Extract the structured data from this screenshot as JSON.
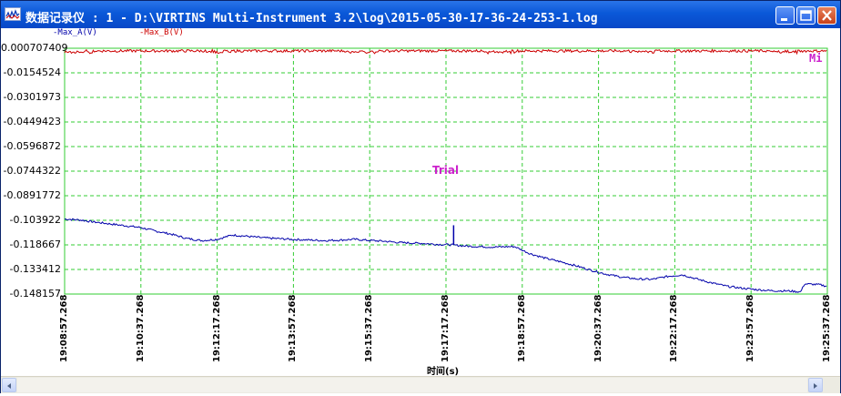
{
  "window": {
    "title": "数据记录仪 : 1 - D:\\VIRTINS Multi-Instrument 3.2\\log\\2015-05-30-17-36-24-253-1.log",
    "controls": {
      "minimize": "minimize",
      "maximize": "maximize",
      "close": "close"
    }
  },
  "legend": {
    "a": {
      "label": "-Max_A(V)",
      "color": "#0000aa"
    },
    "b": {
      "label": "-Max_B(V)",
      "color": "#cc0000"
    }
  },
  "chart": {
    "grid_color": "#33cc33",
    "watermark": "Trial",
    "corner_tag": "Mi",
    "xaxis_title": "时间(s)"
  },
  "chart_data": {
    "type": "line",
    "xlabel": "时间(s)",
    "ylabel": "",
    "y_ticks": [
      "0.000707409",
      "-0.0154524",
      "-0.0301973",
      "-0.0449423",
      "-0.0596872",
      "-0.0744322",
      "-0.0891772",
      "-0.103922",
      "-0.118667",
      "-0.133412",
      "-0.148157"
    ],
    "x_ticks": [
      "19:08:57.268",
      "19:10:37.268",
      "19:12:17.268",
      "19:13:57.268",
      "19:15:37.268",
      "19:17:17.268",
      "19:18:57.268",
      "19:20:37.268",
      "19:22:17.268",
      "19:23:57.268",
      "19:25:37.268"
    ],
    "ylim": [
      -0.148157,
      0.000707409
    ],
    "xlim_s": [
      0,
      1000
    ],
    "grid": true,
    "series": [
      {
        "name": "Max_A(V)",
        "color": "#0000aa",
        "x_s": [
          0,
          20,
          40,
          60,
          80,
          100,
          120,
          140,
          160,
          180,
          200,
          220,
          240,
          260,
          280,
          300,
          320,
          340,
          360,
          380,
          400,
          420,
          440,
          470,
          490,
          505,
          510,
          530,
          560,
          590,
          610,
          630,
          650,
          670,
          690,
          710,
          730,
          750,
          770,
          790,
          810,
          830,
          850,
          870,
          890,
          910,
          930,
          950,
          965,
          970,
          990,
          1000
        ],
        "values": [
          -0.1027,
          -0.1033,
          -0.1046,
          -0.1057,
          -0.1068,
          -0.1079,
          -0.1101,
          -0.1119,
          -0.1145,
          -0.1158,
          -0.115,
          -0.1124,
          -0.1132,
          -0.1141,
          -0.1146,
          -0.1151,
          -0.1154,
          -0.1158,
          -0.1155,
          -0.115,
          -0.1157,
          -0.1162,
          -0.117,
          -0.1175,
          -0.1181,
          -0.1183,
          -0.1185,
          -0.1192,
          -0.1197,
          -0.1194,
          -0.1237,
          -0.1264,
          -0.1286,
          -0.131,
          -0.1337,
          -0.1361,
          -0.1379,
          -0.139,
          -0.1393,
          -0.1375,
          -0.1365,
          -0.1392,
          -0.1416,
          -0.1436,
          -0.1447,
          -0.1456,
          -0.1462,
          -0.1463,
          -0.1469,
          -0.142,
          -0.1425,
          -0.1435
        ]
      },
      {
        "name": "Max_B(V)",
        "color": "#cc0000",
        "x_s": [
          0,
          1000
        ],
        "values": [
          -0.0005,
          -0.0005
        ]
      }
    ]
  }
}
